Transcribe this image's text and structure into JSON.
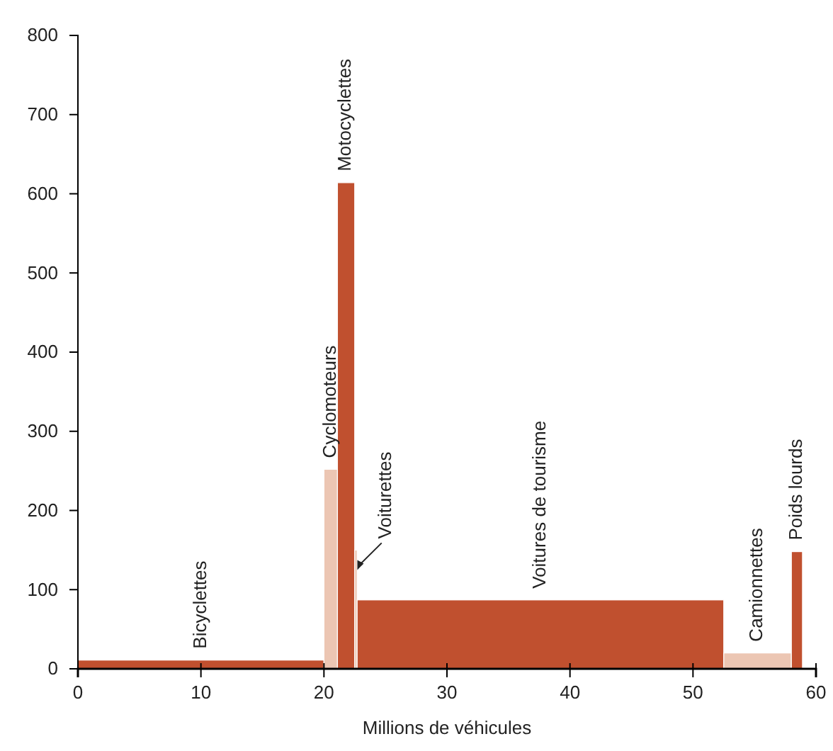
{
  "chart_data": {
    "type": "histogram",
    "bins": [
      0,
      20,
      21.1,
      22.5,
      22.7,
      52.5,
      58,
      58.9
    ],
    "values": [
      11,
      252,
      614,
      150,
      87,
      20,
      148
    ],
    "colors": [
      "#c0502f",
      "#ecc6b3",
      "#c0502f",
      "#ecc6b3",
      "#c0502f",
      "#ecc6b3",
      "#c0502f"
    ],
    "xlabel": "Millions de véhicules",
    "xlim": [
      0,
      60
    ],
    "xticks": [
      0,
      10,
      20,
      30,
      40,
      50,
      60
    ],
    "ylim": [
      0,
      800
    ],
    "yticks": [
      0,
      100,
      200,
      300,
      400,
      500,
      600,
      700,
      800
    ],
    "grid": false,
    "annotations": [
      {
        "text": "Bicyclettes",
        "x": 10,
        "y": 11
      },
      {
        "text": "Cyclomoteurs",
        "x": 20.55,
        "y": 252
      },
      {
        "text": "Motocyclettes",
        "x": 21.8,
        "y": 614
      },
      {
        "text": "Voiturettes",
        "x": 22.6,
        "y": 150
      },
      {
        "text": "Voitures de tourisme",
        "x": 37.6,
        "y": 87
      },
      {
        "text": "Camionnettes",
        "x": 55.25,
        "y": 20
      },
      {
        "text": "Poids lourds",
        "x": 58.45,
        "y": 148
      }
    ]
  }
}
